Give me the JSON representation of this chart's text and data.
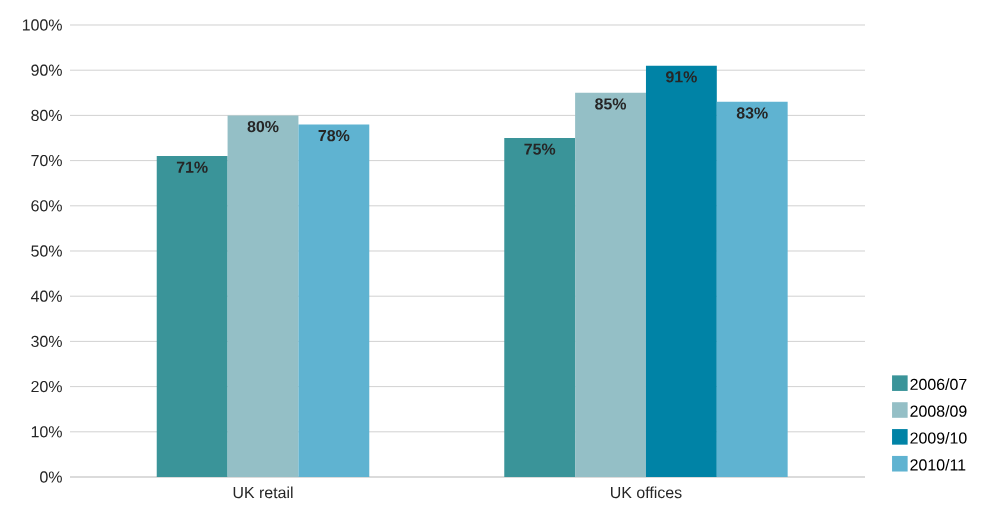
{
  "chart_data": {
    "type": "bar",
    "categories": [
      "UK retail",
      "UK offices"
    ],
    "series": [
      {
        "name": "2006/07",
        "color": "#3a9499",
        "values": [
          71,
          75
        ],
        "value_labels": [
          "71%",
          "75%"
        ]
      },
      {
        "name": "2008/09",
        "color": "#94bfc6",
        "values": [
          80,
          85
        ],
        "value_labels": [
          "80%",
          "85%"
        ]
      },
      {
        "name": "2009/10",
        "color": "#0083a6",
        "values": [
          null,
          91
        ],
        "value_labels": [
          null,
          "91%"
        ]
      },
      {
        "name": "2010/11",
        "color": "#5fb3d1",
        "values": [
          78,
          83
        ],
        "value_labels": [
          "78%",
          "83%"
        ]
      }
    ],
    "ylim": [
      0,
      100
    ],
    "yticks": [
      {
        "value": 0,
        "label": "0%"
      },
      {
        "value": 10,
        "label": "10%"
      },
      {
        "value": 20,
        "label": "20%"
      },
      {
        "value": 30,
        "label": "30%"
      },
      {
        "value": 40,
        "label": "40%"
      },
      {
        "value": 50,
        "label": "50%"
      },
      {
        "value": 60,
        "label": "60%"
      },
      {
        "value": 70,
        "label": "70%"
      },
      {
        "value": 80,
        "label": "80%"
      },
      {
        "value": 90,
        "label": "90%"
      },
      {
        "value": 100,
        "label": "100%"
      }
    ],
    "grid": "y",
    "legend": "bottom right"
  }
}
